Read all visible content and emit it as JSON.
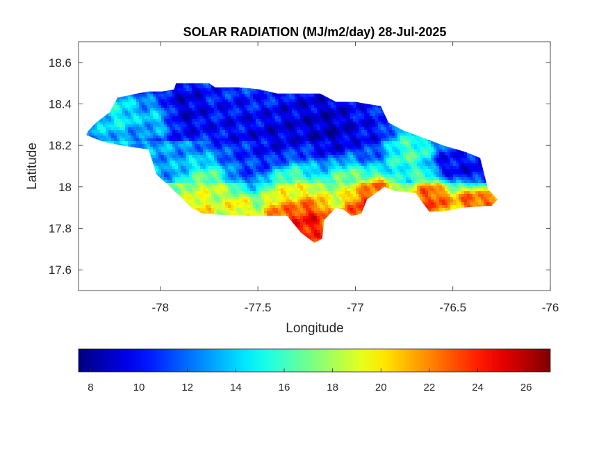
{
  "chart_data": {
    "type": "heatmap",
    "title": "SOLAR RADIATION (MJ/m2/day) 28-Jul-2025",
    "xlabel": "Longitude",
    "ylabel": "Latitude",
    "xlim": [
      -78.42,
      -76.0
    ],
    "ylim": [
      17.5,
      18.7
    ],
    "xticks": [
      -78,
      -77.5,
      -77,
      -76.5,
      -76
    ],
    "xtick_labels": [
      "-78",
      "-77.5",
      "-77",
      "-76.5",
      "-76"
    ],
    "yticks": [
      17.6,
      17.8,
      18.0,
      18.2,
      18.4,
      18.6
    ],
    "ytick_labels": [
      "17.6",
      "17.8",
      "18",
      "18.2",
      "18.4",
      "18.6"
    ],
    "grid": false,
    "colormap": "jet",
    "colorbar": {
      "orientation": "horizontal",
      "placement": "bottom",
      "range": [
        7.5,
        27
      ],
      "ticks": [
        8,
        10,
        12,
        14,
        16,
        18,
        20,
        22,
        24,
        26
      ],
      "tick_labels": [
        "8",
        "10",
        "12",
        "14",
        "16",
        "18",
        "20",
        "22",
        "24",
        "26"
      ]
    },
    "region_outline": [
      [
        -78.37,
        18.27
      ],
      [
        -78.33,
        18.31
      ],
      [
        -78.26,
        18.36
      ],
      [
        -78.22,
        18.43
      ],
      [
        -78.12,
        18.45
      ],
      [
        -78.06,
        18.46
      ],
      [
        -77.99,
        18.46
      ],
      [
        -77.93,
        18.47
      ],
      [
        -77.92,
        18.5
      ],
      [
        -77.75,
        18.5
      ],
      [
        -77.72,
        18.48
      ],
      [
        -77.6,
        18.48
      ],
      [
        -77.49,
        18.47
      ],
      [
        -77.4,
        18.45
      ],
      [
        -77.3,
        18.45
      ],
      [
        -77.18,
        18.45
      ],
      [
        -77.1,
        18.41
      ],
      [
        -77.0,
        18.41
      ],
      [
        -76.94,
        18.4
      ],
      [
        -76.87,
        18.39
      ],
      [
        -76.83,
        18.31
      ],
      [
        -76.75,
        18.27
      ],
      [
        -76.66,
        18.24
      ],
      [
        -76.55,
        18.2
      ],
      [
        -76.44,
        18.17
      ],
      [
        -76.36,
        18.14
      ],
      [
        -76.32,
        17.99
      ],
      [
        -76.27,
        17.94
      ],
      [
        -76.3,
        17.91
      ],
      [
        -76.45,
        17.9
      ],
      [
        -76.56,
        17.88
      ],
      [
        -76.62,
        17.88
      ],
      [
        -76.66,
        17.93
      ],
      [
        -76.69,
        17.97
      ],
      [
        -76.8,
        17.98
      ],
      [
        -76.85,
        18.0
      ],
      [
        -76.94,
        17.94
      ],
      [
        -76.97,
        17.87
      ],
      [
        -77.02,
        17.86
      ],
      [
        -77.06,
        17.89
      ],
      [
        -77.1,
        17.9
      ],
      [
        -77.16,
        17.84
      ],
      [
        -77.17,
        17.75
      ],
      [
        -77.21,
        17.73
      ],
      [
        -77.28,
        17.78
      ],
      [
        -77.35,
        17.86
      ],
      [
        -77.55,
        17.86
      ],
      [
        -77.78,
        17.87
      ],
      [
        -77.84,
        17.9
      ],
      [
        -77.95,
        18.0
      ],
      [
        -78.02,
        18.06
      ],
      [
        -78.06,
        18.18
      ],
      [
        -78.2,
        18.2
      ],
      [
        -78.3,
        18.22
      ],
      [
        -78.38,
        18.25
      ]
    ],
    "radiation_field": {
      "base": 12.5,
      "north_south_trend": [
        {
          "above_lat": 18.22,
          "value": 11.0
        },
        {
          "between_lat": [
            18.02,
            18.22
          ],
          "value": 13.0
        },
        {
          "below_lat": 18.02,
          "value": 17.0
        }
      ],
      "features": [
        {
          "lon": -77.88,
          "lat": 18.38,
          "value": 8.5,
          "radius": 0.1
        },
        {
          "lon": -77.62,
          "lat": 18.28,
          "value": 9.5,
          "radius": 0.12
        },
        {
          "lon": -77.42,
          "lat": 18.2,
          "value": 8.5,
          "radius": 0.12
        },
        {
          "lon": -77.3,
          "lat": 18.32,
          "value": 9.0,
          "radius": 0.1
        },
        {
          "lon": -77.15,
          "lat": 18.3,
          "value": 8.0,
          "radius": 0.12
        },
        {
          "lon": -77.1,
          "lat": 18.22,
          "value": 8.5,
          "radius": 0.08
        },
        {
          "lon": -76.95,
          "lat": 18.25,
          "value": 9.5,
          "radius": 0.1
        },
        {
          "lon": -77.55,
          "lat": 18.1,
          "value": 11.0,
          "radius": 0.1
        },
        {
          "lon": -76.52,
          "lat": 18.1,
          "value": 8.5,
          "radius": 0.08
        },
        {
          "lon": -76.38,
          "lat": 18.08,
          "value": 8.5,
          "radius": 0.07
        },
        {
          "lon": -76.72,
          "lat": 18.17,
          "value": 17.0,
          "radius": 0.1
        },
        {
          "lon": -78.22,
          "lat": 18.35,
          "value": 16.0,
          "radius": 0.09
        },
        {
          "lon": -78.02,
          "lat": 18.33,
          "value": 15.0,
          "radius": 0.07
        },
        {
          "lon": -77.75,
          "lat": 17.98,
          "value": 19.0,
          "radius": 0.1
        },
        {
          "lon": -77.35,
          "lat": 18.0,
          "value": 19.5,
          "radius": 0.1
        },
        {
          "lon": -77.05,
          "lat": 18.03,
          "value": 18.0,
          "radius": 0.09
        },
        {
          "lon": -77.25,
          "lat": 17.82,
          "value": 27.0,
          "radius": 0.11
        },
        {
          "lon": -77.38,
          "lat": 17.87,
          "value": 24.0,
          "radius": 0.07
        },
        {
          "lon": -76.96,
          "lat": 17.91,
          "value": 26.0,
          "radius": 0.09
        },
        {
          "lon": -76.88,
          "lat": 17.98,
          "value": 24.0,
          "radius": 0.06
        },
        {
          "lon": -76.6,
          "lat": 17.95,
          "value": 25.5,
          "radius": 0.08
        },
        {
          "lon": -76.4,
          "lat": 17.93,
          "value": 25.0,
          "radius": 0.07
        },
        {
          "lon": -76.3,
          "lat": 17.93,
          "value": 24.5,
          "radius": 0.04
        },
        {
          "lon": -77.8,
          "lat": 17.88,
          "value": 22.0,
          "radius": 0.06
        },
        {
          "lon": -77.6,
          "lat": 17.9,
          "value": 21.0,
          "radius": 0.06
        },
        {
          "lon": -78.3,
          "lat": 18.27,
          "value": 14.0,
          "radius": 0.07
        }
      ],
      "texture_amplitude": 1.6
    }
  }
}
